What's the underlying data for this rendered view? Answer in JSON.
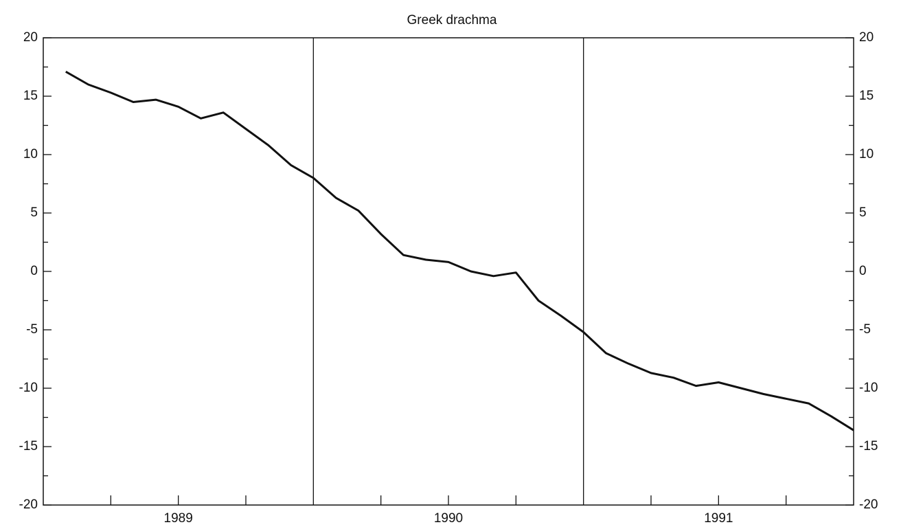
{
  "chart_data": {
    "type": "line",
    "title": "Greek drachma",
    "categories": [
      null,
      null,
      null,
      null,
      null,
      "1989",
      null,
      null,
      null,
      null,
      null,
      null,
      null,
      null,
      null,
      null,
      null,
      "1990",
      null,
      null,
      null,
      null,
      null,
      null,
      null,
      null,
      null,
      null,
      null,
      "1991",
      null,
      null,
      null,
      null,
      null,
      null
    ],
    "series": [
      {
        "color": "#111111",
        "values": [
          17.1,
          16.0,
          15.3,
          14.5,
          14.7,
          14.1,
          13.1,
          13.6,
          12.2,
          10.8,
          9.1,
          8.0,
          6.3,
          5.2,
          3.2,
          1.4,
          1.0,
          0.8,
          0.0,
          -0.4,
          -0.1,
          -2.5,
          -3.8,
          -5.2,
          -7.0,
          -7.9,
          -8.7,
          -9.1,
          -9.8,
          -9.5,
          -10.0,
          -10.5,
          -10.9,
          -11.3,
          -12.4,
          -13.6
        ]
      }
    ],
    "ylim": [
      -20,
      20
    ],
    "yticks": [
      -20,
      -15,
      -10,
      -5,
      0,
      5,
      10,
      15,
      20
    ]
  }
}
